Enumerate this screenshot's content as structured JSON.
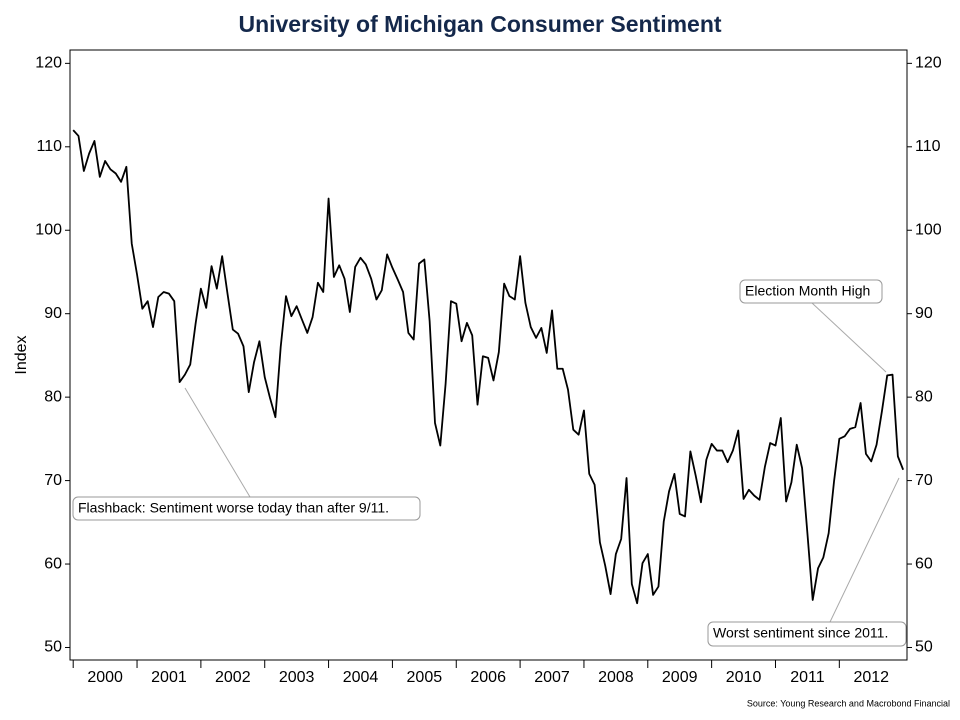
{
  "chart_data": {
    "type": "line",
    "title": "University of Michigan Consumer Sentiment",
    "y_label": "Index",
    "source": "Source: Young Research and Macrobond Financial",
    "annotations": [
      "Flashback: Sentiment worse today than after 9/11.",
      "Election Month High",
      "Worst sentiment since 2011."
    ],
    "xlim": [
      1999.95,
      2013.06
    ],
    "xticks": [
      2000,
      2001,
      2002,
      2003,
      2004,
      2005,
      2006,
      2007,
      2008,
      2009,
      2010,
      2011,
      2012
    ],
    "ylim": [
      48.5,
      121.6
    ],
    "yticks": [
      50,
      60,
      70,
      80,
      90,
      100,
      110,
      120
    ],
    "color": "#000000",
    "x": [
      2000,
      2000.083,
      2000.167,
      2000.25,
      2000.333,
      2000.417,
      2000.5,
      2000.583,
      2000.667,
      2000.75,
      2000.833,
      2000.917,
      2001,
      2001.083,
      2001.167,
      2001.25,
      2001.333,
      2001.417,
      2001.5,
      2001.583,
      2001.667,
      2001.75,
      2001.833,
      2001.917,
      2002,
      2002.083,
      2002.167,
      2002.25,
      2002.333,
      2002.417,
      2002.5,
      2002.583,
      2002.667,
      2002.75,
      2002.833,
      2002.917,
      2003,
      2003.083,
      2003.167,
      2003.25,
      2003.333,
      2003.417,
      2003.5,
      2003.583,
      2003.667,
      2003.75,
      2003.833,
      2003.917,
      2004,
      2004.083,
      2004.167,
      2004.25,
      2004.333,
      2004.417,
      2004.5,
      2004.583,
      2004.667,
      2004.75,
      2004.833,
      2004.917,
      2005,
      2005.083,
      2005.167,
      2005.25,
      2005.333,
      2005.417,
      2005.5,
      2005.583,
      2005.667,
      2005.75,
      2005.833,
      2005.917,
      2006,
      2006.083,
      2006.167,
      2006.25,
      2006.333,
      2006.417,
      2006.5,
      2006.583,
      2006.667,
      2006.75,
      2006.833,
      2006.917,
      2007,
      2007.083,
      2007.167,
      2007.25,
      2007.333,
      2007.417,
      2007.5,
      2007.583,
      2007.667,
      2007.75,
      2007.833,
      2007.917,
      2008,
      2008.083,
      2008.167,
      2008.25,
      2008.333,
      2008.417,
      2008.5,
      2008.583,
      2008.667,
      2008.75,
      2008.833,
      2008.917,
      2009,
      2009.083,
      2009.167,
      2009.25,
      2009.333,
      2009.417,
      2009.5,
      2009.583,
      2009.667,
      2009.75,
      2009.833,
      2009.917,
      2010,
      2010.083,
      2010.167,
      2010.25,
      2010.333,
      2010.417,
      2010.5,
      2010.583,
      2010.667,
      2010.75,
      2010.833,
      2010.917,
      2011,
      2011.083,
      2011.167,
      2011.25,
      2011.333,
      2011.417,
      2011.5,
      2011.583,
      2011.667,
      2011.75,
      2011.833,
      2011.917,
      2012,
      2012.083,
      2012.167,
      2012.25,
      2012.333,
      2012.417,
      2012.5,
      2012.583,
      2012.667,
      2012.75,
      2012.833,
      2012.917,
      2013
    ],
    "values": [
      112.0,
      111.3,
      107.1,
      109.2,
      110.7,
      106.4,
      108.3,
      107.3,
      106.8,
      105.8,
      107.6,
      98.4,
      94.7,
      90.6,
      91.5,
      88.4,
      92.0,
      92.6,
      92.4,
      91.5,
      81.8,
      82.7,
      83.9,
      88.8,
      93.0,
      90.7,
      95.7,
      93.0,
      96.9,
      92.4,
      88.1,
      87.6,
      86.1,
      80.6,
      84.2,
      86.7,
      82.4,
      79.9,
      77.6,
      86.0,
      92.1,
      89.7,
      90.9,
      89.3,
      87.7,
      89.6,
      93.7,
      92.6,
      103.8,
      94.4,
      95.8,
      94.2,
      90.2,
      95.6,
      96.7,
      95.9,
      94.2,
      91.7,
      92.8,
      97.1,
      95.5,
      94.1,
      92.6,
      87.7,
      86.9,
      96.0,
      96.5,
      89.1,
      76.9,
      74.2,
      81.6,
      91.5,
      91.2,
      86.7,
      88.9,
      87.4,
      79.1,
      84.9,
      84.7,
      82.0,
      85.4,
      93.6,
      92.1,
      91.7,
      96.9,
      91.3,
      88.4,
      87.1,
      88.3,
      85.3,
      90.4,
      83.4,
      83.4,
      80.9,
      76.1,
      75.5,
      78.4,
      70.8,
      69.5,
      62.6,
      59.8,
      56.4,
      61.2,
      63.0,
      70.3,
      57.6,
      55.3,
      60.1,
      61.2,
      56.3,
      57.3,
      65.1,
      68.7,
      70.8,
      66.0,
      65.7,
      73.5,
      70.6,
      67.4,
      72.5,
      74.4,
      73.6,
      73.6,
      72.2,
      73.6,
      76.0,
      67.8,
      68.9,
      68.2,
      67.7,
      71.6,
      74.5,
      74.2,
      77.5,
      67.5,
      69.8,
      74.3,
      71.5,
      63.7,
      55.7,
      59.5,
      60.8,
      63.7,
      69.9,
      75.0,
      75.3,
      76.2,
      76.4,
      79.3,
      73.2,
      72.3,
      74.3,
      78.3,
      82.6,
      82.7,
      72.9,
      71.3
    ]
  }
}
